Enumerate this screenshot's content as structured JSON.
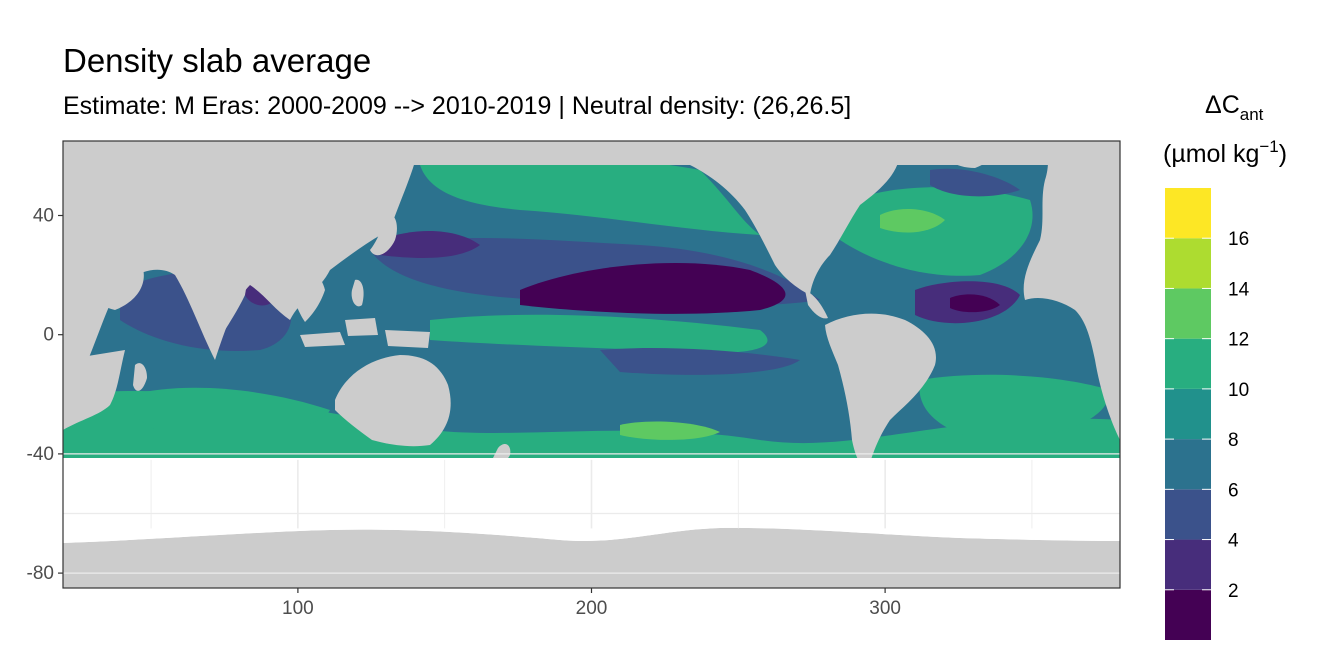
{
  "title": "Density slab average",
  "subtitle": "Estimate: M Eras: 2000-2009 --> 2010-2019 | Neutral density: (26,26.5]",
  "legend": {
    "title_main": "ΔC",
    "title_sub": "ant",
    "title_unit_prefix": "(µmol kg",
    "title_unit_sup": "−1",
    "title_unit_suffix": ")",
    "bins": [
      {
        "color": "#440154"
      },
      {
        "color": "#472d7b"
      },
      {
        "color": "#3b528b"
      },
      {
        "color": "#2c728e"
      },
      {
        "color": "#21918c"
      },
      {
        "color": "#28ae80"
      },
      {
        "color": "#5ec962"
      },
      {
        "color": "#addc30"
      },
      {
        "color": "#fde725"
      }
    ],
    "labels": [
      "2",
      "4",
      "6",
      "8",
      "10",
      "12",
      "14",
      "16"
    ]
  },
  "chart_data": {
    "type": "heatmap",
    "title": "Density slab average",
    "subtitle": "Estimate: M Eras: 2000-2009 --> 2010-2019 | Neutral density: (26,26.5]",
    "xlabel": "",
    "ylabel": "",
    "xlim": [
      20,
      380
    ],
    "ylim": [
      -85,
      65
    ],
    "x_ticks": [
      100,
      200,
      300
    ],
    "y_ticks": [
      40,
      0,
      -40,
      -80
    ],
    "colorbar": {
      "range": [
        0,
        18
      ],
      "breaks": [
        2,
        4,
        6,
        8,
        10,
        12,
        14,
        16
      ],
      "colors": [
        "#440154",
        "#472d7b",
        "#3b528b",
        "#2c728e",
        "#21918c",
        "#28ae80",
        "#5ec962",
        "#addc30",
        "#fde725"
      ]
    },
    "land_color": "#cccccc",
    "grid": true
  }
}
